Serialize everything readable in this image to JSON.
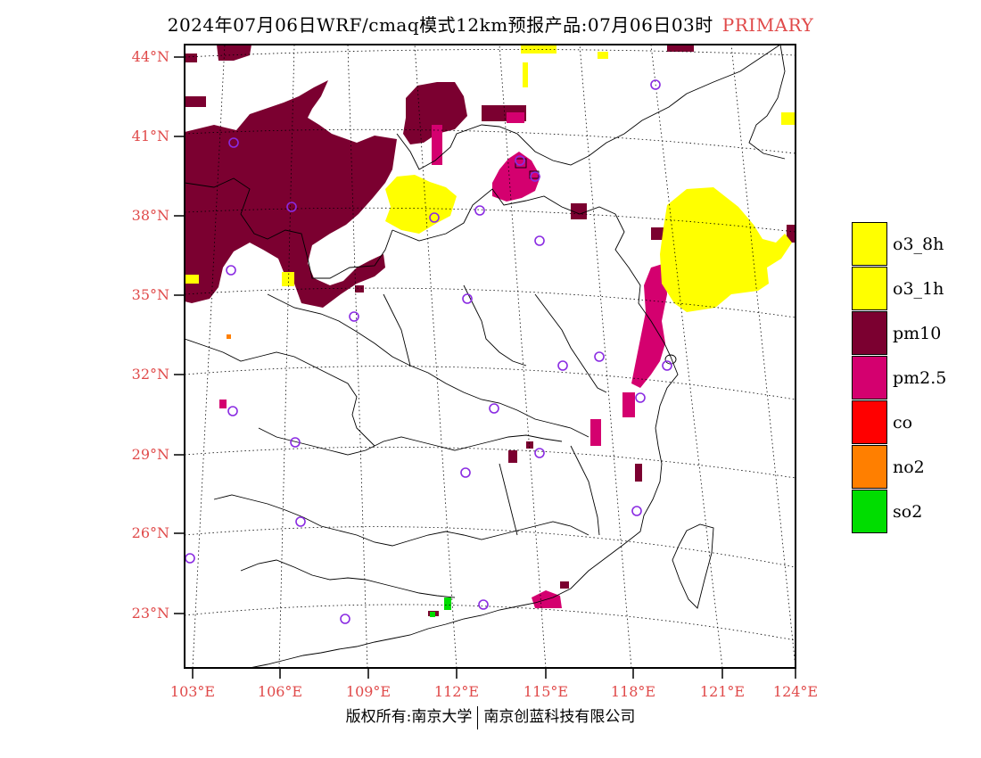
{
  "title": {
    "text": "2024年07月06日WRF/cmaq模式12km预报产品:07月06日03时",
    "tag": "PRIMARY"
  },
  "colors": {
    "label_red": "#e04a4a",
    "o3": "#ffff00",
    "pm10": "#7b0030",
    "pm25": "#d4006f",
    "co": "#ff0000",
    "no2": "#ff7f00",
    "so2": "#00dd00",
    "station_circle": "#8a2be2"
  },
  "axes": {
    "lat_labels": [
      "44°N",
      "41°N",
      "38°N",
      "35°N",
      "32°N",
      "29°N",
      "26°N",
      "23°N"
    ],
    "lon_labels": [
      "103°E",
      "106°E",
      "109°E",
      "112°E",
      "115°E",
      "118°E",
      "121°E",
      "124°E"
    ]
  },
  "legend": {
    "items": [
      {
        "label": "o3_8h",
        "color": "#ffff00"
      },
      {
        "label": "o3_1h",
        "color": "#ffff00"
      },
      {
        "label": "pm10",
        "color": "#7b0030"
      },
      {
        "label": "pm2.5",
        "color": "#d4006f"
      },
      {
        "label": "co",
        "color": "#ff0000"
      },
      {
        "label": "no2",
        "color": "#ff7f00"
      },
      {
        "label": "so2",
        "color": "#00dd00"
      }
    ]
  },
  "copyright": {
    "left": "版权所有:南京大学",
    "right": "南京创蓝科技有限公司"
  }
}
